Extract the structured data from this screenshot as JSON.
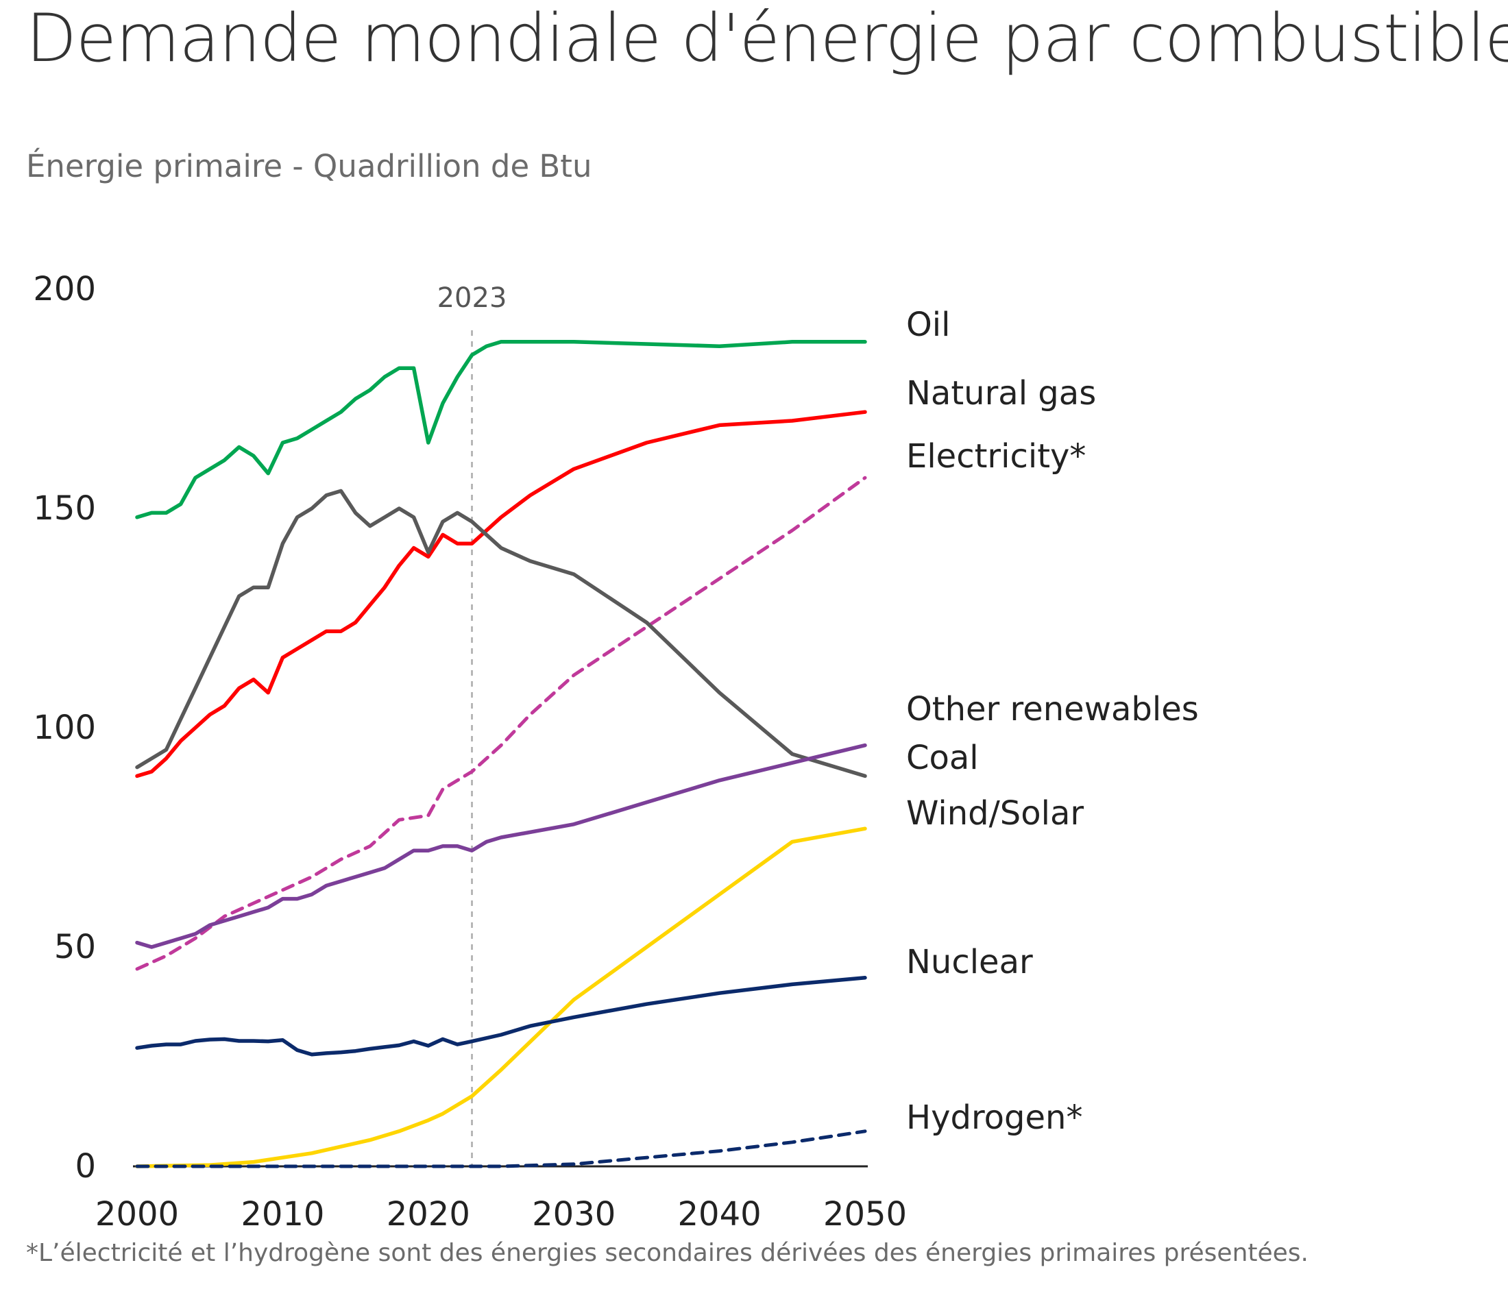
{
  "title": "Demande mondiale d'énergie par combustible",
  "subtitle": "Énergie primaire - Quadrillion de Btu",
  "footnote": "*L’électricité et l’hydrogène sont des énergies secondaires dérivées des énergies primaires présentées.",
  "chart_data": {
    "type": "line",
    "title": "Demande mondiale d'énergie par combustible",
    "ylabel": "Énergie primaire - Quadrillion de Btu",
    "xlabel": "",
    "xlim": [
      2000,
      2050
    ],
    "ylim": [
      0,
      200
    ],
    "x_ticks": [
      2000,
      2010,
      2020,
      2030,
      2040,
      2050
    ],
    "y_ticks": [
      0,
      50,
      100,
      150,
      200
    ],
    "grid": false,
    "vline": {
      "x": 2023,
      "label": "2023"
    },
    "series": [
      {
        "name": "Oil",
        "color": "#00a651",
        "dash": false,
        "x": [
          2000,
          2001,
          2002,
          2003,
          2004,
          2005,
          2006,
          2007,
          2008,
          2009,
          2010,
          2011,
          2012,
          2013,
          2014,
          2015,
          2016,
          2017,
          2018,
          2019,
          2020,
          2021,
          2022,
          2023,
          2024,
          2025,
          2030,
          2035,
          2040,
          2045,
          2050
        ],
        "y": [
          148,
          149,
          149,
          151,
          157,
          159,
          161,
          164,
          162,
          158,
          165,
          166,
          168,
          170,
          172,
          175,
          177,
          180,
          182,
          182,
          165,
          174,
          180,
          185,
          187,
          188,
          188,
          187.5,
          187,
          188,
          188
        ]
      },
      {
        "name": "Natural gas",
        "color": "#ff0000",
        "dash": false,
        "x": [
          2000,
          2001,
          2002,
          2003,
          2004,
          2005,
          2006,
          2007,
          2008,
          2009,
          2010,
          2011,
          2012,
          2013,
          2014,
          2015,
          2016,
          2017,
          2018,
          2019,
          2020,
          2021,
          2022,
          2023,
          2025,
          2027,
          2030,
          2035,
          2040,
          2045,
          2050
        ],
        "y": [
          89,
          90,
          93,
          97,
          100,
          103,
          105,
          109,
          111,
          108,
          116,
          118,
          120,
          122,
          122,
          124,
          128,
          132,
          137,
          141,
          139,
          144,
          142,
          142,
          148,
          153,
          159,
          165,
          169,
          170,
          172
        ]
      },
      {
        "name": "Electricity*",
        "color": "#c0399a",
        "dash": true,
        "x": [
          2000,
          2002,
          2004,
          2006,
          2008,
          2010,
          2012,
          2014,
          2016,
          2018,
          2020,
          2021,
          2023,
          2025,
          2027,
          2030,
          2035,
          2040,
          2045,
          2050
        ],
        "y": [
          45,
          48,
          52,
          57,
          60,
          63,
          66,
          70,
          73,
          79,
          80,
          86,
          90,
          96,
          103,
          112,
          123,
          134,
          145,
          157
        ]
      },
      {
        "name": "Coal",
        "color": "#595959",
        "dash": false,
        "x": [
          2000,
          2001,
          2002,
          2003,
          2004,
          2005,
          2006,
          2007,
          2008,
          2009,
          2010,
          2011,
          2012,
          2013,
          2014,
          2015,
          2016,
          2017,
          2018,
          2019,
          2020,
          2021,
          2022,
          2023,
          2025,
          2027,
          2030,
          2035,
          2040,
          2045,
          2050
        ],
        "y": [
          91,
          93,
          95,
          102,
          109,
          116,
          123,
          130,
          132,
          132,
          142,
          148,
          150,
          153,
          154,
          149,
          146,
          148,
          150,
          148,
          140,
          147,
          149,
          147,
          141,
          138,
          135,
          124,
          108,
          94,
          89
        ]
      },
      {
        "name": "Other renewables",
        "color": "#7b3f98",
        "dash": false,
        "x": [
          2000,
          2001,
          2002,
          2003,
          2004,
          2005,
          2006,
          2007,
          2008,
          2009,
          2010,
          2011,
          2012,
          2013,
          2014,
          2015,
          2016,
          2017,
          2018,
          2019,
          2020,
          2021,
          2022,
          2023,
          2024,
          2025,
          2030,
          2035,
          2040,
          2045,
          2050
        ],
        "y": [
          51,
          50,
          51,
          52,
          53,
          55,
          56,
          57,
          58,
          59,
          61,
          61,
          62,
          64,
          65,
          66,
          67,
          68,
          70,
          72,
          72,
          73,
          73,
          72,
          74,
          75,
          78,
          83,
          88,
          92,
          96
        ]
      },
      {
        "name": "Wind/Solar",
        "color": "#ffd500",
        "dash": false,
        "x": [
          2000,
          2005,
          2008,
          2010,
          2012,
          2014,
          2016,
          2018,
          2020,
          2021,
          2023,
          2025,
          2030,
          2035,
          2040,
          2045,
          2050
        ],
        "y": [
          0,
          0.3,
          1,
          2,
          3,
          4.5,
          6,
          8,
          10.5,
          12,
          16,
          22,
          38,
          50,
          62,
          74,
          77
        ]
      },
      {
        "name": "Nuclear",
        "color": "#0b2a6b",
        "dash": false,
        "x": [
          2000,
          2001,
          2002,
          2003,
          2004,
          2005,
          2006,
          2007,
          2008,
          2009,
          2010,
          2011,
          2012,
          2013,
          2014,
          2015,
          2016,
          2017,
          2018,
          2019,
          2020,
          2021,
          2022,
          2023,
          2025,
          2027,
          2030,
          2035,
          2040,
          2045,
          2050
        ],
        "y": [
          27,
          27.5,
          27.8,
          27.8,
          28.6,
          28.9,
          29,
          28.6,
          28.6,
          28.5,
          28.8,
          26.5,
          25.5,
          25.8,
          26,
          26.3,
          26.8,
          27.2,
          27.6,
          28.5,
          27.5,
          29,
          27.8,
          28.5,
          30,
          32,
          34,
          37,
          39.5,
          41.5,
          43
        ]
      },
      {
        "name": "Hydrogen*",
        "color": "#0b2a6b",
        "dash": true,
        "x": [
          2000,
          2025,
          2030,
          2035,
          2040,
          2045,
          2050
        ],
        "y": [
          0,
          0,
          0.5,
          2,
          3.5,
          5.5,
          8
        ]
      }
    ],
    "labels": [
      {
        "text": "Oil"
      },
      {
        "text": "Natural gas"
      },
      {
        "text": "Electricity*"
      },
      {
        "text": "Other renewables"
      },
      {
        "text": "Coal"
      },
      {
        "text": "Wind/Solar"
      },
      {
        "text": "Nuclear"
      },
      {
        "text": "Hydrogen*"
      }
    ]
  }
}
